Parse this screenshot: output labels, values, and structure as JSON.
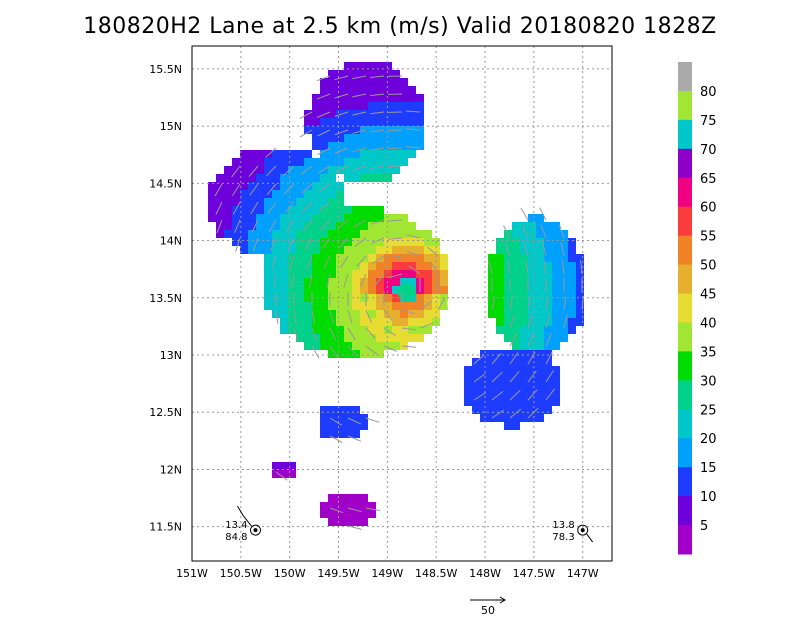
{
  "title": "180820H2 Lane at 2.5 km (m/s) Valid 20180820  1828Z",
  "chart_data": {
    "type": "heatmap",
    "title": "180820H2 Lane at 2.5 km (m/s) Valid 20180820  1828Z",
    "x_ticks": [
      "151W",
      "150.5W",
      "150W",
      "149.5W",
      "149W",
      "148.5W",
      "148W",
      "147.5W",
      "147W"
    ],
    "y_ticks": [
      "11.5N",
      "12N",
      "12.5N",
      "13N",
      "13.5N",
      "14N",
      "14.5N",
      "15N",
      "15.5N"
    ],
    "xlim": [
      -151.0,
      -146.7
    ],
    "ylim": [
      11.2,
      15.7
    ],
    "grid": true,
    "colorbar": {
      "labels": [
        "5",
        "10",
        "15",
        "20",
        "25",
        "30",
        "35",
        "40",
        "45",
        "50",
        "55",
        "60",
        "65",
        "70",
        "75",
        "80"
      ],
      "colors": [
        "#a000c8",
        "#6e00dc",
        "#1e3cff",
        "#00a0ff",
        "#00c8c8",
        "#00d28c",
        "#00dc00",
        "#a0e632",
        "#e6dc32",
        "#e6af2d",
        "#f08228",
        "#fa3c3c",
        "#f00082",
        "#8c00c8",
        "#00c8c8",
        "#a0e632",
        "#aaaaaa"
      ]
    },
    "center": {
      "lon": -148.8,
      "lat": 13.55
    },
    "max_wind_region": {
      "lon": -148.78,
      "lat": 13.77,
      "value": 60
    },
    "scale_vector": {
      "label": "50",
      "value": 50
    },
    "station_plots": [
      {
        "lon": -150.35,
        "lat": 11.47,
        "top": "13.4",
        "bottom": "84.8"
      },
      {
        "lon": -147.0,
        "lat": 11.47,
        "top": "13.8",
        "bottom": "78.3"
      }
    ]
  }
}
